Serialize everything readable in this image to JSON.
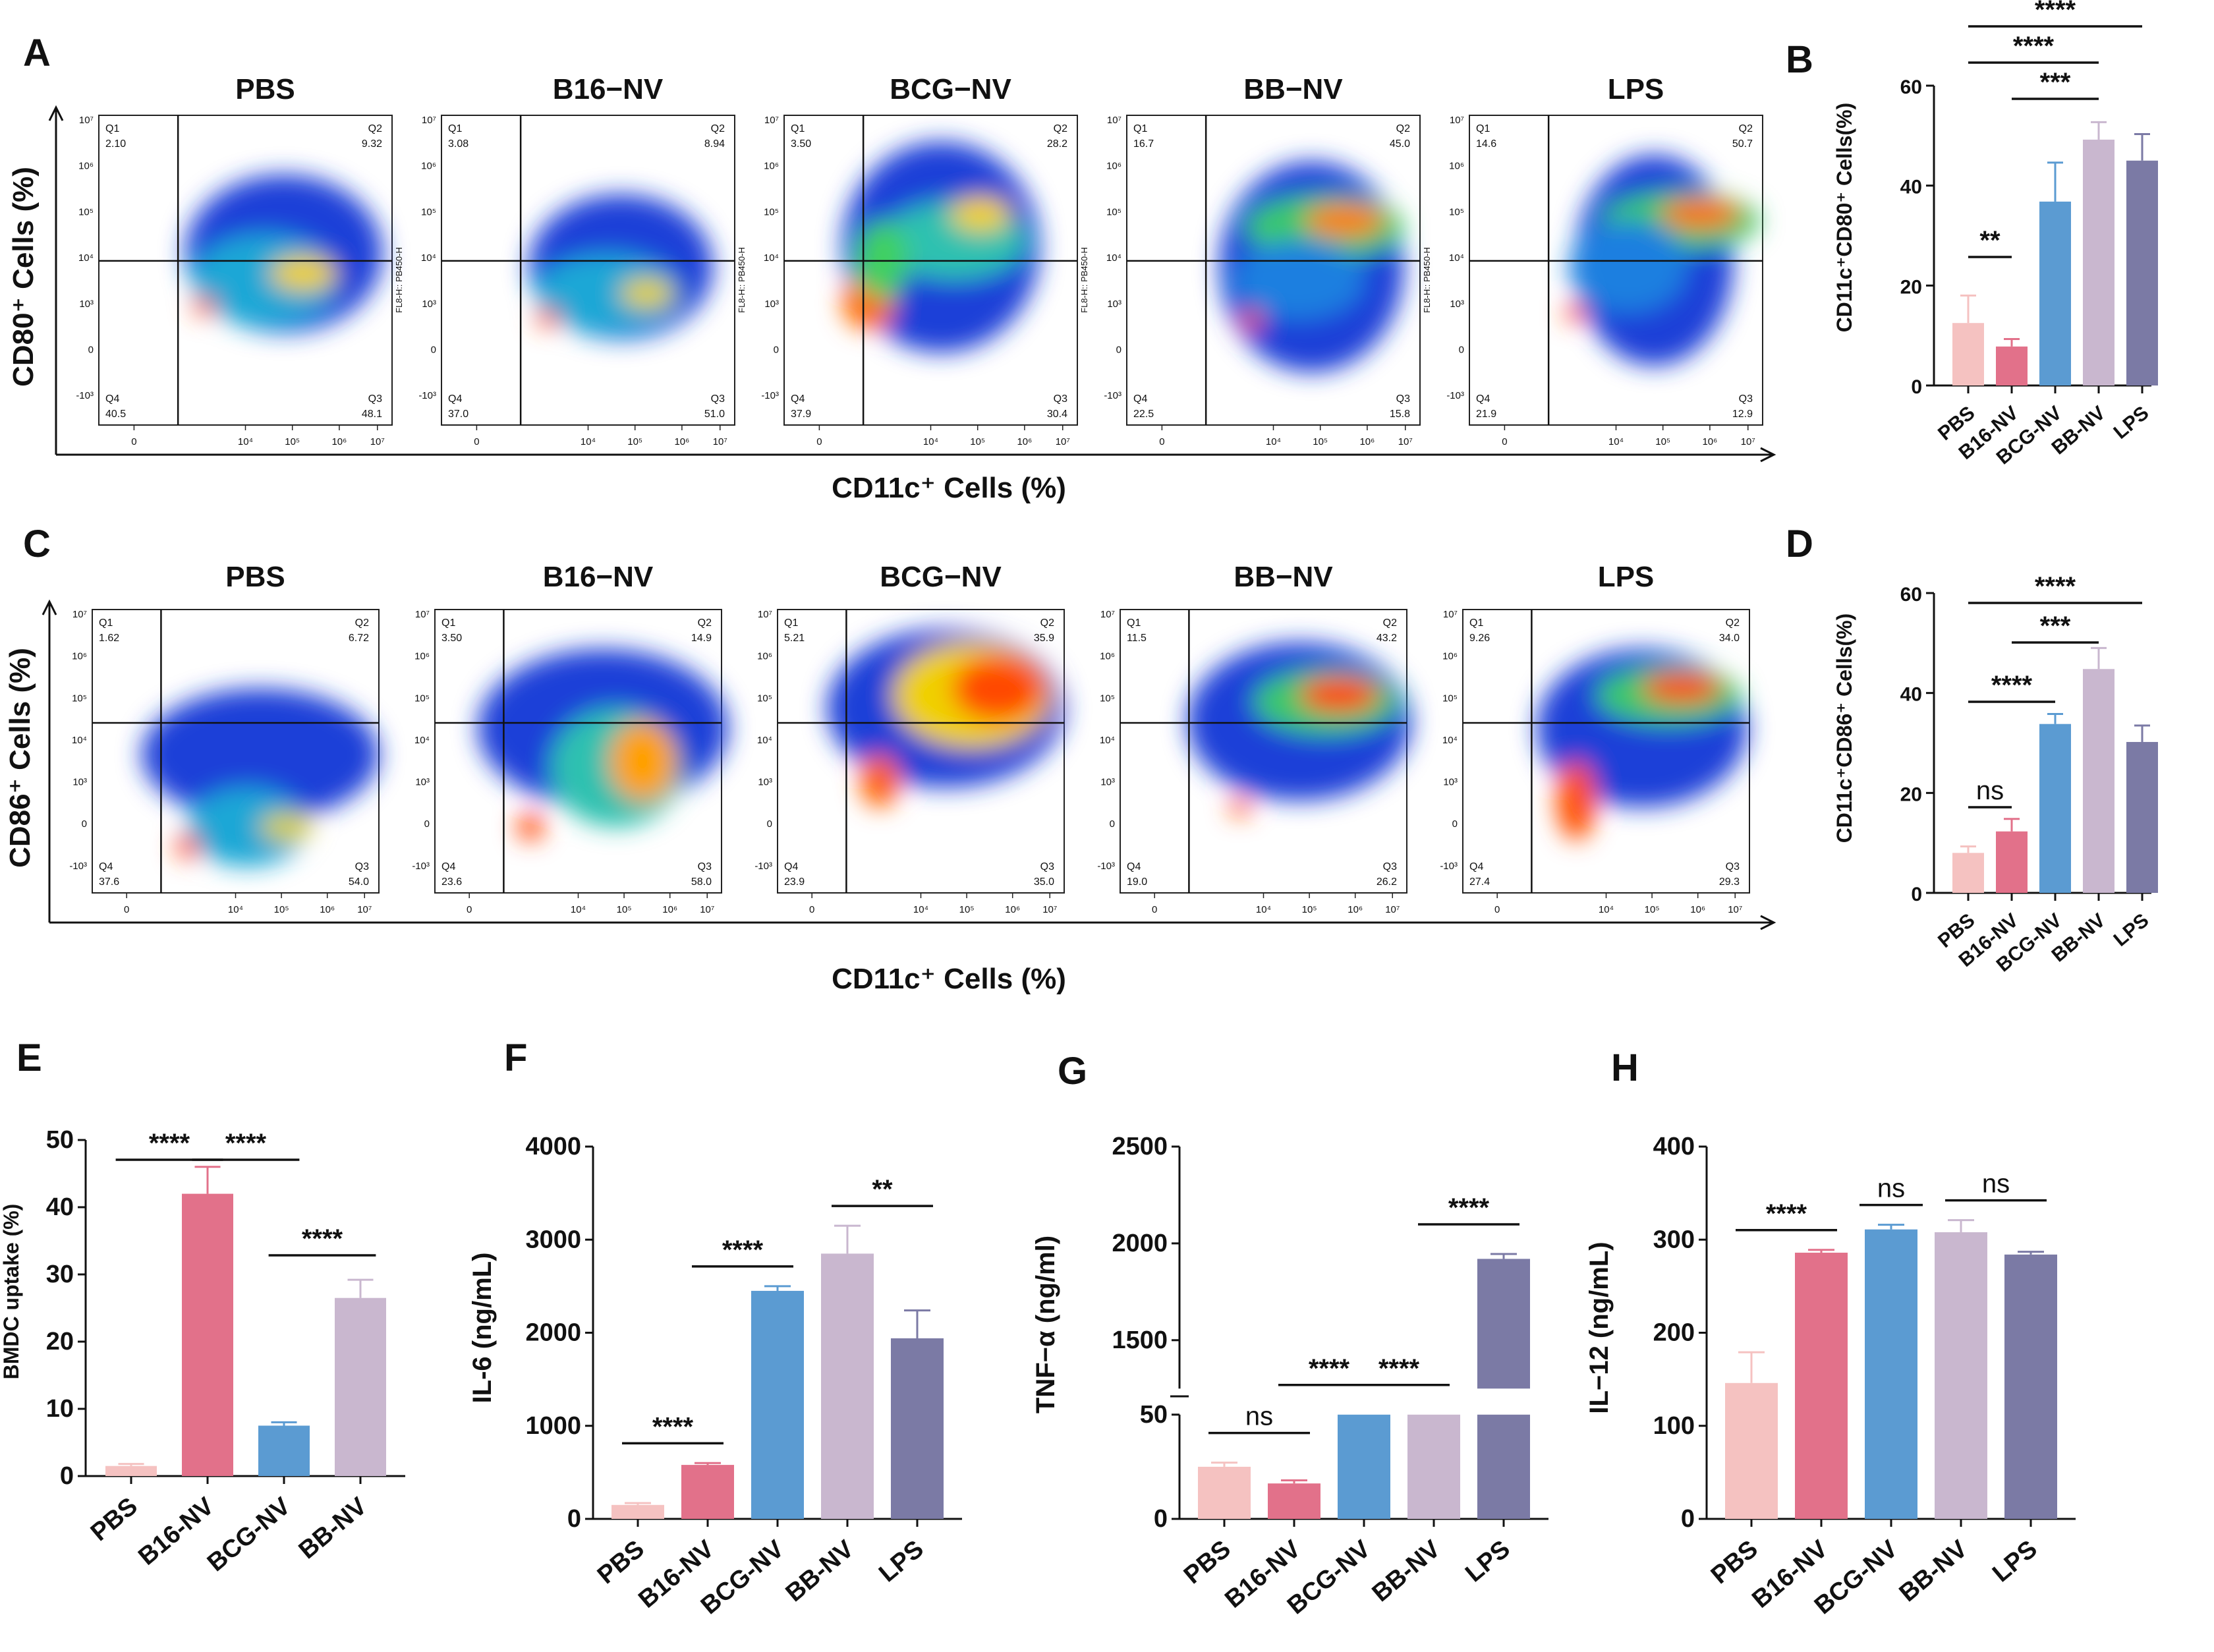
{
  "figure": {
    "colors": {
      "PBS": "#f5c2c1",
      "B16-NV": "#e2718a",
      "BCG-NV": "#5b9bd2",
      "BB-NV": "#c9b7cf",
      "LPS": "#7b7aa5"
    },
    "flow": [
      {
        "letter": "A",
        "y_axis": "CD80⁺ Cells (%)",
        "x_axis": "CD11c⁺ Cells (%)",
        "channel_label": "FL8-H:: PB450-H",
        "plots": [
          {
            "title": "PBS",
            "q1": "Q1",
            "q1v": "2.10",
            "q2": "Q2",
            "q2v": "9.32",
            "q3": "Q3",
            "q3v": "48.1",
            "q4": "Q4",
            "q4v": "40.5"
          },
          {
            "title": "B16−NV",
            "q1": "Q1",
            "q1v": "3.08",
            "q2": "Q2",
            "q2v": "8.94",
            "q3": "Q3",
            "q3v": "51.0",
            "q4": "Q4",
            "q4v": "37.0"
          },
          {
            "title": "BCG−NV",
            "q1": "Q1",
            "q1v": "3.50",
            "q2": "Q2",
            "q2v": "28.2",
            "q3": "Q3",
            "q3v": "30.4",
            "q4": "Q4",
            "q4v": "37.9"
          },
          {
            "title": "BB−NV",
            "q1": "Q1",
            "q1v": "16.7",
            "q2": "Q2",
            "q2v": "45.0",
            "q3": "Q3",
            "q3v": "15.8",
            "q4": "Q4",
            "q4v": "22.5"
          },
          {
            "title": "LPS",
            "q1": "Q1",
            "q1v": "14.6",
            "q2": "Q2",
            "q2v": "50.7",
            "q3": "Q3",
            "q3v": "12.9",
            "q4": "Q4",
            "q4v": "21.9"
          }
        ]
      },
      {
        "letter": "C",
        "y_axis": "CD86⁺ Cells (%)",
        "x_axis": "CD11c⁺ Cells (%)",
        "channel_label": "",
        "plots": [
          {
            "title": "PBS",
            "q1": "Q1",
            "q1v": "1.62",
            "q2": "Q2",
            "q2v": "6.72",
            "q3": "Q3",
            "q3v": "54.0",
            "q4": "Q4",
            "q4v": "37.6"
          },
          {
            "title": "B16−NV",
            "q1": "Q1",
            "q1v": "3.50",
            "q2": "Q2",
            "q2v": "14.9",
            "q3": "Q3",
            "q3v": "58.0",
            "q4": "Q4",
            "q4v": "23.6"
          },
          {
            "title": "BCG−NV",
            "q1": "Q1",
            "q1v": "5.21",
            "q2": "Q2",
            "q2v": "35.9",
            "q3": "Q3",
            "q3v": "35.0",
            "q4": "Q4",
            "q4v": "23.9"
          },
          {
            "title": "BB−NV",
            "q1": "Q1",
            "q1v": "11.5",
            "q2": "Q2",
            "q2v": "43.2",
            "q3": "Q3",
            "q3v": "26.2",
            "q4": "Q4",
            "q4v": "19.0"
          },
          {
            "title": "LPS",
            "q1": "Q1",
            "q1v": "9.26",
            "q2": "Q2",
            "q2v": "34.0",
            "q3": "Q3",
            "q3v": "29.3",
            "q4": "Q4",
            "q4v": "27.4"
          }
        ]
      }
    ],
    "flow_ticks": {
      "x": [
        "0",
        "10⁴",
        "10⁵",
        "10⁶",
        "10⁷"
      ],
      "y": [
        "10⁷",
        "10⁶",
        "10⁵",
        "10⁴",
        "10³",
        "0",
        "-10³"
      ]
    }
  },
  "chart_data": [
    {
      "id": "B",
      "type": "bar",
      "letter": "B",
      "categories": [
        "PBS",
        "B16-NV",
        "BCG-NV",
        "BB-NV",
        "LPS"
      ],
      "values": [
        12.5,
        7.8,
        36.8,
        49.2,
        45.0
      ],
      "errors": [
        5.5,
        1.5,
        7.8,
        3.5,
        5.3
      ],
      "ylabel": "CD11c⁺CD80⁺ Cells(%)",
      "ylim": [
        0,
        60
      ],
      "yticks": [
        "0",
        "20",
        "40",
        "60"
      ],
      "sig": [
        {
          "from": 0,
          "to": 4,
          "label": "****"
        },
        {
          "from": 0,
          "to": 3,
          "label": "****"
        },
        {
          "from": 1,
          "to": 3,
          "label": "***"
        },
        {
          "from": 0,
          "to": 1,
          "label": "**"
        }
      ]
    },
    {
      "id": "D",
      "type": "bar",
      "letter": "D",
      "categories": [
        "PBS",
        "B16-NV",
        "BCG-NV",
        "BB-NV",
        "LPS"
      ],
      "values": [
        8.0,
        12.3,
        33.8,
        44.8,
        30.2
      ],
      "errors": [
        1.3,
        2.5,
        2.0,
        4.2,
        3.3
      ],
      "ylabel": "CD11c⁺CD86⁺ Cells(%)",
      "ylim": [
        0,
        60
      ],
      "yticks": [
        "0",
        "20",
        "40",
        "60"
      ],
      "sig": [
        {
          "from": 0,
          "to": 4,
          "label": "****"
        },
        {
          "from": 1,
          "to": 3,
          "label": "***"
        },
        {
          "from": 0,
          "to": 2,
          "label": "****"
        },
        {
          "from": 0,
          "to": 1,
          "label": "ns"
        }
      ]
    },
    {
      "id": "E",
      "type": "bar",
      "letter": "E",
      "categories": [
        "PBS",
        "B16-NV",
        "BCG-NV",
        "BB-NV"
      ],
      "values": [
        1.5,
        42.0,
        7.5,
        26.5
      ],
      "errors": [
        0.3,
        4.0,
        0.5,
        2.7
      ],
      "ylabel": "BMDC uptake (%)",
      "ylim": [
        0,
        50
      ],
      "yticks": [
        "0",
        "10",
        "20",
        "30",
        "40",
        "50"
      ],
      "sig": [
        {
          "from": 0,
          "to": 1,
          "label": "****"
        },
        {
          "from": 1,
          "to": 2,
          "label": "****"
        },
        {
          "from": 2,
          "to": 3,
          "label": "****"
        }
      ]
    },
    {
      "id": "F",
      "type": "bar",
      "letter": "F",
      "categories": [
        "PBS",
        "B16-NV",
        "BCG-NV",
        "BB-NV",
        "LPS"
      ],
      "values": [
        150,
        580,
        2450,
        2850,
        1940
      ],
      "errors": [
        20,
        20,
        50,
        300,
        300
      ],
      "ylabel": "IL-6 (ng/mL)",
      "ylim": [
        0,
        4000
      ],
      "yticks": [
        "0",
        "1000",
        "2000",
        "3000",
        "4000"
      ],
      "sig": [
        {
          "from": 0,
          "to": 1,
          "label": "****"
        },
        {
          "from": 1,
          "to": 2,
          "label": "****"
        },
        {
          "from": 3,
          "to": 4,
          "label": "**"
        }
      ]
    },
    {
      "id": "G",
      "type": "bar",
      "letter": "G",
      "categories": [
        "PBS",
        "B16-NV",
        "BCG-NV",
        "BB-NV",
        "LPS"
      ],
      "values": [
        25,
        17,
        50,
        50,
        1920
      ],
      "errors": [
        2,
        1.5,
        0,
        0,
        25
      ],
      "ylabel": "TNF−α (ng/ml)",
      "ylim_lower": [
        0,
        50
      ],
      "ylim_upper": [
        1250,
        2500
      ],
      "yticks": [
        "0",
        "50",
        "1500",
        "2000",
        "2500"
      ],
      "sig": [
        {
          "from": 0,
          "to": 1,
          "label": "ns"
        },
        {
          "from": 1,
          "to": 2,
          "label": "****"
        },
        {
          "from": 2,
          "to": 3,
          "label": "****"
        },
        {
          "from": 3,
          "to": 4,
          "label": "****"
        }
      ]
    },
    {
      "id": "H",
      "type": "bar",
      "letter": "H",
      "categories": [
        "PBS",
        "B16-NV",
        "BCG-NV",
        "BB-NV",
        "LPS"
      ],
      "values": [
        146,
        286,
        311,
        308,
        284
      ],
      "errors": [
        33,
        3,
        5,
        13,
        3
      ],
      "ylabel": "IL−12 (ng/mL)",
      "ylim": [
        0,
        400
      ],
      "yticks": [
        "0",
        "100",
        "200",
        "300",
        "400"
      ],
      "sig": [
        {
          "from": 0,
          "to": 1,
          "label": "****"
        },
        {
          "from": 2,
          "to": 2,
          "label": "ns"
        },
        {
          "from": 3,
          "to": 4,
          "label": "ns"
        }
      ]
    }
  ]
}
